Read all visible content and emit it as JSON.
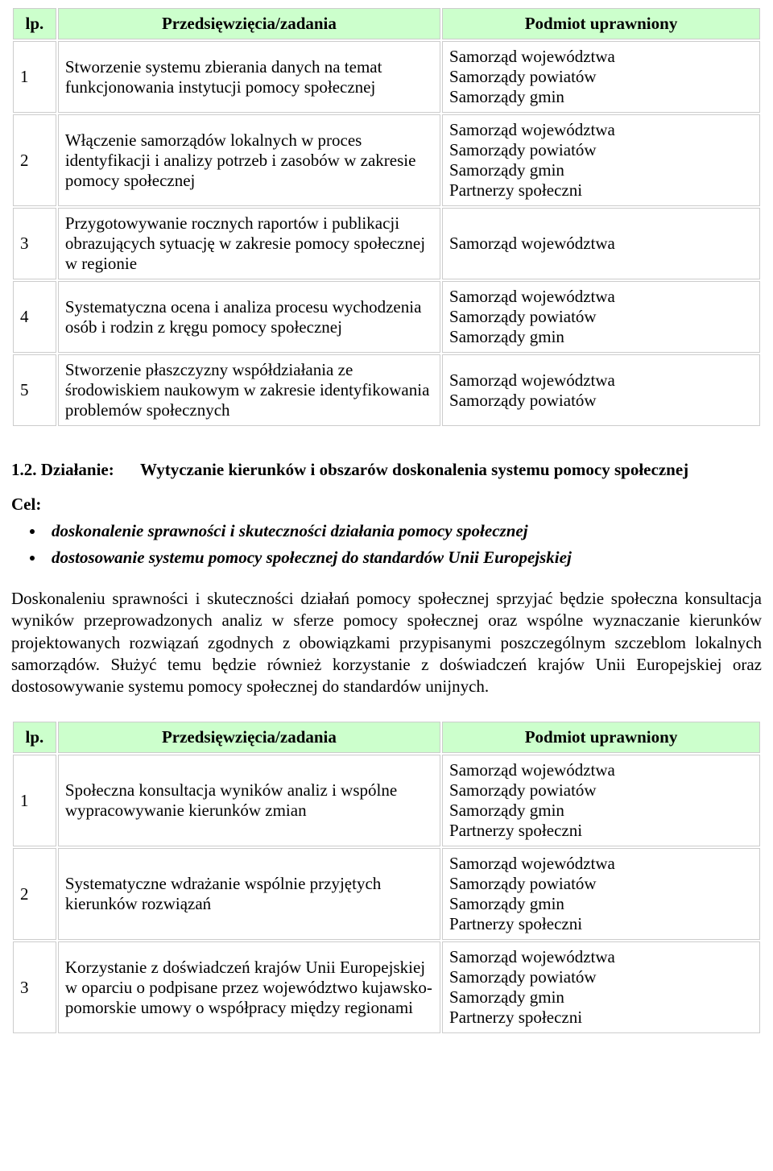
{
  "table1": {
    "headers": {
      "lp": "lp.",
      "task": "Przedsięwzięcia/zadania",
      "entity": "Podmiot uprawniony"
    },
    "rows": [
      {
        "lp": "1",
        "task": "Stworzenie systemu zbierania danych na temat funkcjonowania instytucji pomocy społecznej",
        "entities": [
          "Samorząd województwa",
          "Samorządy powiatów",
          "Samorządy gmin"
        ]
      },
      {
        "lp": "2",
        "task": "Włączenie samorządów lokalnych w proces identyfikacji i analizy potrzeb i zasobów w zakresie pomocy społecznej",
        "entities": [
          "Samorząd województwa",
          "Samorządy powiatów",
          "Samorządy gmin",
          "Partnerzy społeczni"
        ]
      },
      {
        "lp": "3",
        "task": "Przygotowywanie rocznych raportów i publikacji obrazujących sytuację w zakresie pomocy społecznej w regionie",
        "entities": [
          "Samorząd województwa"
        ]
      },
      {
        "lp": "4",
        "task": "Systematyczna ocena i analiza procesu wychodzenia osób i rodzin z kręgu pomocy społecznej",
        "entities": [
          "Samorząd województwa",
          "Samorządy powiatów",
          "Samorządy gmin"
        ]
      },
      {
        "lp": "5",
        "task": "Stworzenie płaszczyzny współdziałania ze środowiskiem naukowym w zakresie identyfikowania problemów społecznych",
        "entities": [
          "Samorząd województwa",
          "Samorządy powiatów"
        ]
      }
    ]
  },
  "section": {
    "num": "1.2. Działanie:",
    "title": "Wytyczanie kierunków i obszarów doskonalenia systemu pomocy społecznej",
    "cel_label": "Cel:",
    "goals": [
      "doskonalenie sprawności i skuteczności działania pomocy społecznej",
      "dostosowanie systemu pomocy społecznej do standardów Unii Europejskiej"
    ],
    "paragraph": "Doskonaleniu sprawności i skuteczności działań pomocy społecznej sprzyjać będzie społeczna konsultacja wyników przeprowadzonych analiz w sferze pomocy społecznej oraz wspólne wyznaczanie kierunków projektowanych rozwiązań zgodnych z obowiązkami przypisanymi poszczególnym szczeblom lokalnych samorządów. Służyć temu będzie również korzystanie z doświadczeń krajów Unii Europejskiej oraz dostosowywanie systemu pomocy społecznej do standardów unijnych."
  },
  "table2": {
    "headers": {
      "lp": "lp.",
      "task": "Przedsięwzięcia/zadania",
      "entity": "Podmiot uprawniony"
    },
    "rows": [
      {
        "lp": "1",
        "task": "Społeczna konsultacja wyników analiz i wspólne wypracowywanie kierunków zmian",
        "entities": [
          "Samorząd województwa",
          "Samorządy powiatów",
          "Samorządy gmin",
          "Partnerzy społeczni"
        ]
      },
      {
        "lp": "2",
        "task": "Systematyczne wdrażanie wspólnie przyjętych kierunków rozwiązań",
        "entities": [
          "Samorząd województwa",
          "Samorządy powiatów",
          "Samorządy gmin",
          "Partnerzy społeczni"
        ]
      },
      {
        "lp": "3",
        "task": "Korzystanie z doświadczeń krajów Unii Europejskiej w oparciu o podpisane przez województwo kujawsko-pomorskie umowy o współpracy między regionami",
        "entities": [
          "Samorząd województwa",
          "Samorządy powiatów",
          "Samorządy gmin",
          "Partnerzy społeczni"
        ]
      }
    ]
  },
  "style": {
    "header_bg": "#ccffcc",
    "border_color": "#cccccc",
    "font_family": "Times New Roman",
    "body_font_size": 21
  }
}
